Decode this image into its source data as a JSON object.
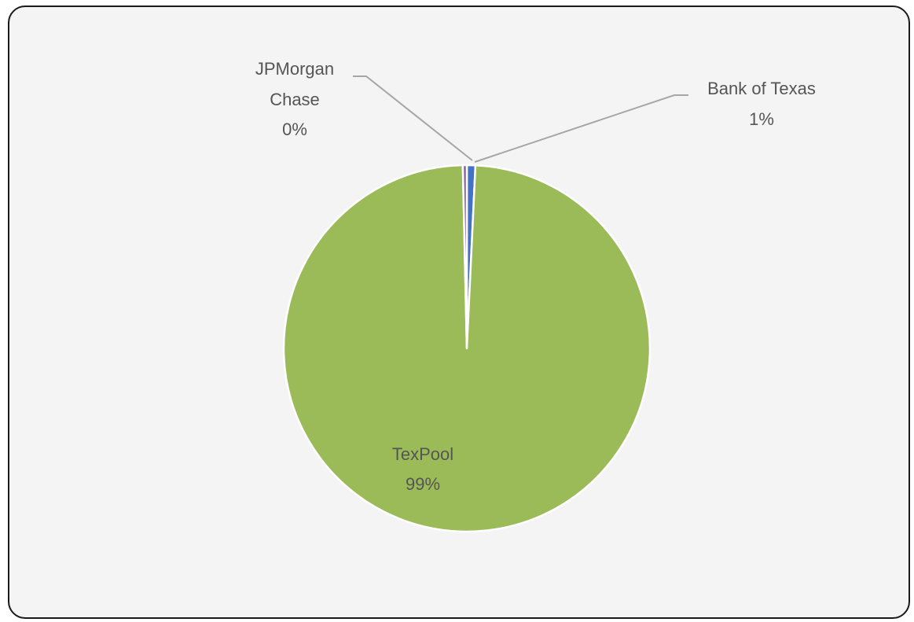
{
  "chart_data": {
    "type": "pie",
    "title": "",
    "slices": [
      {
        "label_lines": [
          "Bank of Texas"
        ],
        "percent_label": "1%",
        "value": 0.75,
        "color": "#4472c4"
      },
      {
        "label_lines": [
          "TexPool"
        ],
        "percent_label": "99%",
        "value": 98.9,
        "color": "#9bbb59"
      },
      {
        "label_lines": [
          "JPMorgan",
          "Chase"
        ],
        "percent_label": "0%",
        "value": 0.35,
        "color": "#8064a2"
      }
    ],
    "legend": "none",
    "leader_lines": true,
    "background_color": "#f4f4f4",
    "slice_border_color": "#ffffff"
  }
}
